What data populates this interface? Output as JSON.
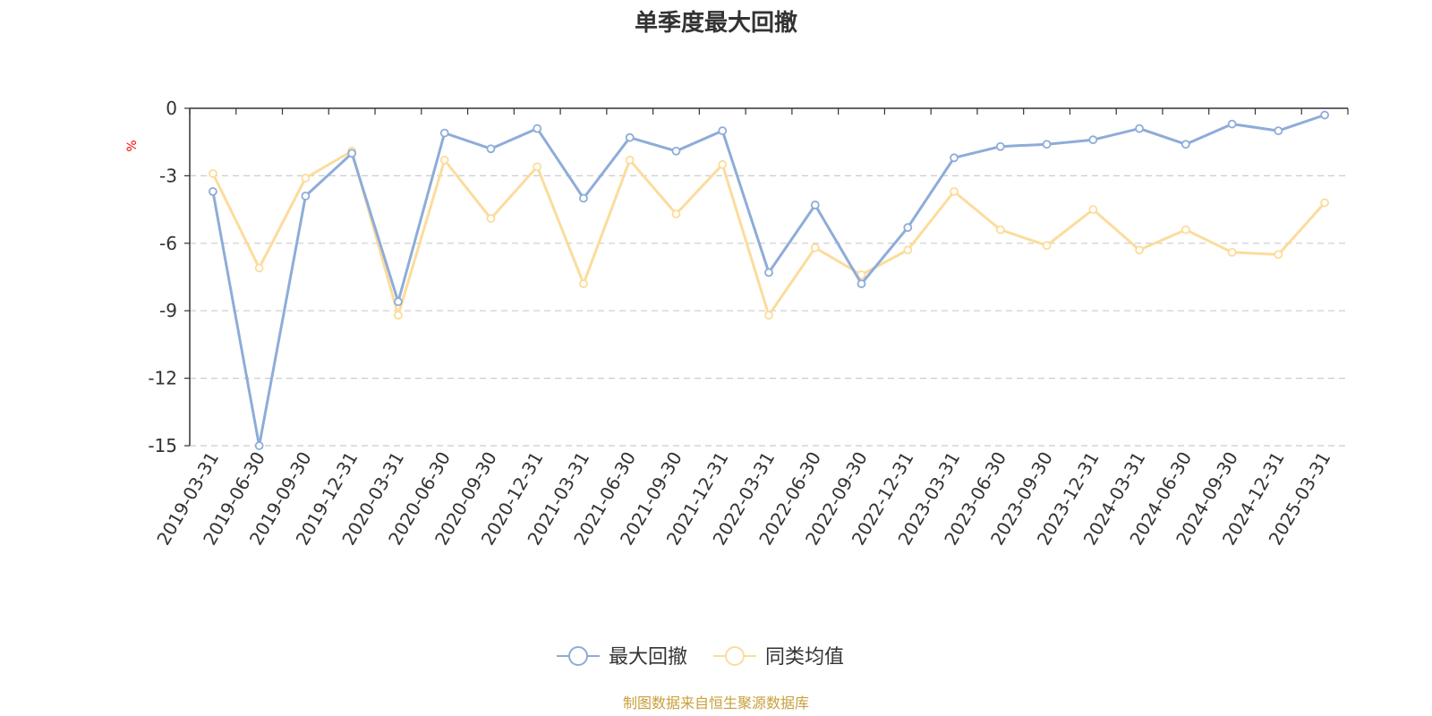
{
  "chart_data": {
    "type": "line",
    "title": "单季度最大回撤",
    "ylabel": "%",
    "ylim": [
      -15,
      0
    ],
    "yticks": [
      0,
      -3,
      -6,
      -9,
      -12,
      -15
    ],
    "grid": true,
    "legend_position": "bottom",
    "categories": [
      "2019-03-31",
      "2019-06-30",
      "2019-09-30",
      "2019-12-31",
      "2020-03-31",
      "2020-06-30",
      "2020-09-30",
      "2020-12-31",
      "2021-03-31",
      "2021-06-30",
      "2021-09-30",
      "2021-12-31",
      "2022-03-31",
      "2022-06-30",
      "2022-09-30",
      "2022-12-31",
      "2023-03-31",
      "2023-06-30",
      "2023-09-30",
      "2023-12-31",
      "2024-03-31",
      "2024-06-30",
      "2024-09-30",
      "2024-12-31",
      "2025-03-31"
    ],
    "series": [
      {
        "name": "最大回撤",
        "color": "#8eacd9",
        "values": [
          -3.7,
          -15.0,
          -3.9,
          -2.0,
          -8.6,
          -1.1,
          -1.8,
          -0.9,
          -4.0,
          -1.3,
          -1.9,
          -1.0,
          -7.3,
          -4.3,
          -7.8,
          -5.3,
          -2.2,
          -1.7,
          -1.6,
          -1.4,
          -0.9,
          -1.6,
          -0.7,
          -1.0,
          -0.3
        ]
      },
      {
        "name": "同类均值",
        "color": "#fcdc9c",
        "values": [
          -2.9,
          -7.1,
          -3.1,
          -1.9,
          -9.2,
          -2.3,
          -4.9,
          -2.6,
          -7.8,
          -2.3,
          -4.7,
          -2.5,
          -9.2,
          -6.2,
          -7.4,
          -6.3,
          -3.7,
          -5.4,
          -6.1,
          -4.5,
          -6.3,
          -5.4,
          -6.4,
          -6.5,
          -4.2
        ]
      }
    ]
  },
  "colors": {
    "axis": "#333333",
    "grid": "#cccccc",
    "unit": "#ff0000",
    "source": "#c8a03c"
  },
  "source_note": "制图数据来自恒生聚源数据库"
}
